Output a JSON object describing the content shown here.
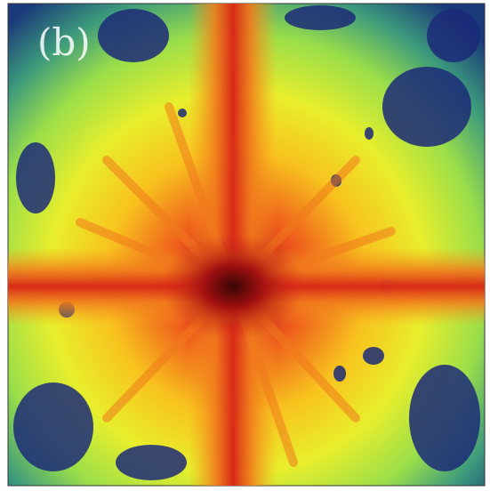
{
  "label": "(b)"
}
